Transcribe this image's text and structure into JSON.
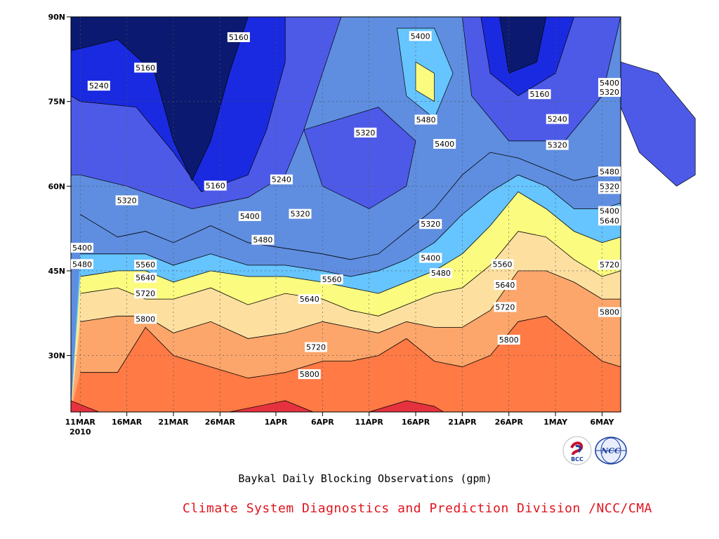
{
  "chart_data": {
    "type": "heatmap",
    "title": "Baykal Daily Blocking Observations (gpm)",
    "x": {
      "tick_labels": [
        "11MAR",
        "16MAR",
        "21MAR",
        "26MAR",
        "1APR",
        "6APR",
        "11APR",
        "16APR",
        "21APR",
        "26APR",
        "1MAY",
        "6MAY"
      ],
      "year_label": "2010",
      "range_days": [
        -1,
        58
      ]
    },
    "y": {
      "tick_labels": [
        "30N",
        "45N",
        "60N",
        "75N",
        "90N"
      ],
      "tick_values": [
        30,
        45,
        60,
        75,
        90
      ],
      "range": [
        20,
        90
      ]
    },
    "grid": true,
    "contour_levels": [
      5160,
      5240,
      5320,
      5400,
      5480,
      5560,
      5640,
      5720,
      5800
    ],
    "fill_colors": [
      "#0b1a70",
      "#1a2ae0",
      "#4d5ae8",
      "#5f8ee0",
      "#66c4ff",
      "#fbfb80",
      "#fde0a0",
      "#fca66b",
      "#ff7a45",
      "#f56c78",
      "#e6323e"
    ],
    "contour_lines": {
      "x_days": [
        0,
        4,
        7,
        10,
        14,
        18,
        22,
        26,
        29,
        32,
        35,
        38,
        41,
        44,
        47,
        50,
        53,
        56,
        58
      ],
      "latitudes": {
        "5880": [
          20,
          20,
          20,
          20,
          20,
          20,
          20,
          20,
          21,
          21,
          20,
          20,
          20,
          20,
          20,
          20,
          20,
          20,
          20
        ],
        "5800": [
          27,
          27,
          35,
          30,
          28,
          26,
          27,
          29,
          29,
          30,
          33,
          29,
          28,
          30,
          36,
          37,
          33,
          29,
          28
        ],
        "5720": [
          36,
          37,
          37,
          34,
          36,
          33,
          34,
          36,
          35,
          34,
          36,
          35,
          35,
          38,
          45,
          45,
          43,
          40,
          40
        ],
        "5640": [
          41,
          42,
          40,
          40,
          42,
          39,
          41,
          40,
          38,
          37,
          39,
          41,
          42,
          46,
          52,
          51,
          47,
          44,
          45
        ],
        "5560": [
          44,
          45,
          45,
          43,
          45,
          44,
          44,
          43,
          42,
          41,
          43,
          45,
          48,
          53,
          59,
          56,
          52,
          50,
          51
        ],
        "5480": [
          48,
          48,
          48,
          46,
          48,
          46,
          46,
          45,
          44,
          45,
          47,
          50,
          55,
          59,
          62,
          60,
          56,
          56,
          57
        ],
        "5400": [
          55,
          51,
          52,
          50,
          53,
          50,
          49,
          48,
          47,
          48,
          52,
          56,
          62,
          66,
          65,
          63,
          61,
          62,
          62
        ]
      }
    },
    "contour_labels": [
      {
        "text": "5160",
        "x_day": 17,
        "lat": 86.4
      },
      {
        "text": "5160",
        "x_day": 7,
        "lat": 81
      },
      {
        "text": "5240",
        "x_day": 2,
        "lat": 77.8
      },
      {
        "text": "5160",
        "x_day": 14.5,
        "lat": 60.1
      },
      {
        "text": "5240",
        "x_day": 21.6,
        "lat": 61.2
      },
      {
        "text": "5320",
        "x_day": 5,
        "lat": 57.5
      },
      {
        "text": "5400",
        "x_day": 18.2,
        "lat": 54.7
      },
      {
        "text": "5320",
        "x_day": 23.6,
        "lat": 55.1
      },
      {
        "text": "5480",
        "x_day": 19.6,
        "lat": 50.5
      },
      {
        "text": "5400",
        "x_day": 0.1,
        "lat": 49.1
      },
      {
        "text": "5480",
        "x_day": 0.1,
        "lat": 46.2
      },
      {
        "text": "5560",
        "x_day": 7,
        "lat": 46.1
      },
      {
        "text": "5640",
        "x_day": 7,
        "lat": 43.8
      },
      {
        "text": "5720",
        "x_day": 7,
        "lat": 41.0
      },
      {
        "text": "5800",
        "x_day": 7,
        "lat": 36.5
      },
      {
        "text": "5560",
        "x_day": 27,
        "lat": 43.5
      },
      {
        "text": "5640",
        "x_day": 24.6,
        "lat": 40.0
      },
      {
        "text": "5720",
        "x_day": 25.3,
        "lat": 31.5
      },
      {
        "text": "5800",
        "x_day": 24.6,
        "lat": 26.7
      },
      {
        "text": "5400",
        "x_day": 36.5,
        "lat": 86.6
      },
      {
        "text": "5480",
        "x_day": 37.1,
        "lat": 71.8
      },
      {
        "text": "5400",
        "x_day": 39.1,
        "lat": 67.5
      },
      {
        "text": "5320",
        "x_day": 30.6,
        "lat": 69.5
      },
      {
        "text": "5320",
        "x_day": 37.6,
        "lat": 53.3
      },
      {
        "text": "5400",
        "x_day": 37.6,
        "lat": 47.3
      },
      {
        "text": "5480",
        "x_day": 38.7,
        "lat": 44.6
      },
      {
        "text": "5160",
        "x_day": 49.3,
        "lat": 76.3
      },
      {
        "text": "5240",
        "x_day": 51.2,
        "lat": 71.9
      },
      {
        "text": "5320",
        "x_day": 51.2,
        "lat": 67.3
      },
      {
        "text": "5560",
        "x_day": 45.3,
        "lat": 46.2
      },
      {
        "text": "5640",
        "x_day": 45.6,
        "lat": 42.5
      },
      {
        "text": "5720",
        "x_day": 45.6,
        "lat": 38.6
      },
      {
        "text": "5800",
        "x_day": 46,
        "lat": 32.8
      },
      {
        "text": "5320",
        "x_day": 57.3,
        "lat": 76.7
      },
      {
        "text": "5400",
        "x_day": 64.6,
        "lat": 78.3
      },
      {
        "text": "5480",
        "x_day": 60.7,
        "lat": 62.6
      },
      {
        "text": "5560",
        "x_day": 61.1,
        "lat": 59.5
      },
      {
        "text": "5640",
        "x_day": 61.1,
        "lat": 53.9
      },
      {
        "text": "5720",
        "x_day": 61.5,
        "lat": 46.1
      },
      {
        "text": "5800",
        "x_day": 64.8,
        "lat": 37.7
      },
      {
        "text": "5320",
        "x_day": 65.8,
        "lat": 60.0
      },
      {
        "text": "5400",
        "x_day": 65.6,
        "lat": 55.6
      }
    ]
  },
  "caption": "Baykal Daily Blocking Observations (gpm)",
  "credit": "Climate System Diagnostics and Prediction Division /NCC/CMA",
  "logos": [
    {
      "text": "BCC",
      "color": "#1a3fa0"
    },
    {
      "text": "NCC",
      "color": "#1a3fa0"
    }
  ]
}
